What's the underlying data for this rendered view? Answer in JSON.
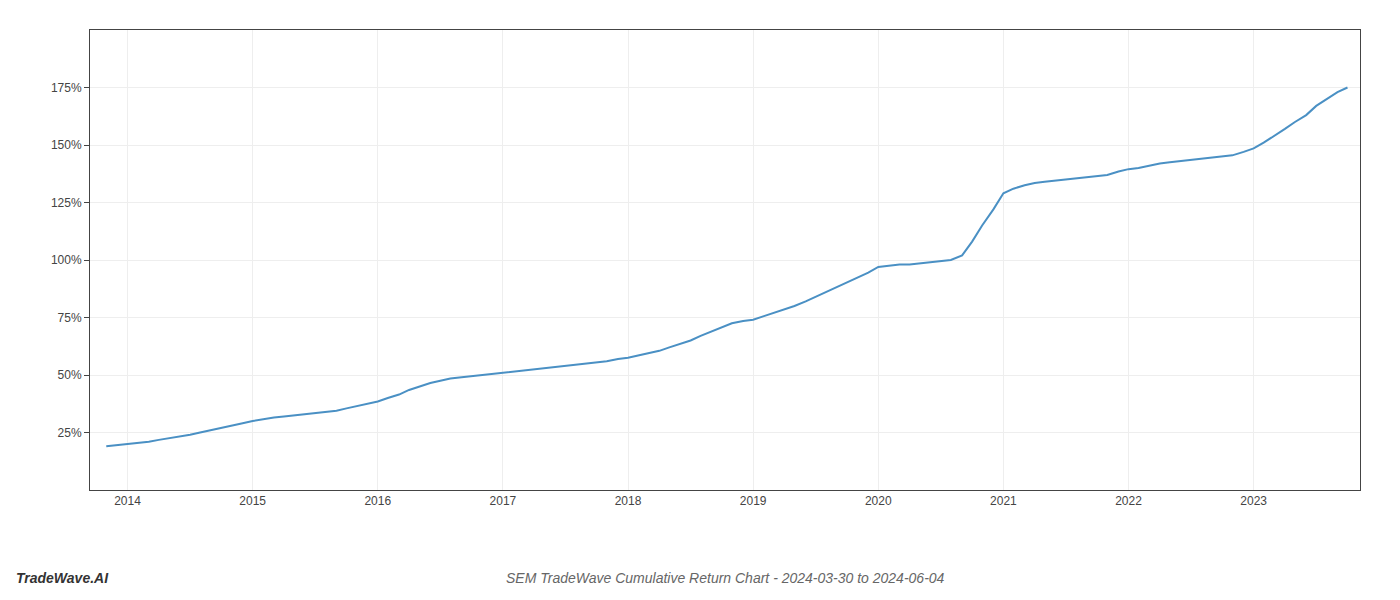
{
  "chart_data": {
    "type": "line",
    "title": "SEM TradeWave Cumulative Return Chart - 2024-03-30 to 2024-06-04",
    "annotations": [
      "TradeWave.AI"
    ],
    "color": "#4a90c4",
    "grid": true,
    "x": [
      2013.83,
      2013.92,
      2014.0,
      2014.08,
      2014.17,
      2014.25,
      2014.33,
      2014.42,
      2014.5,
      2014.58,
      2014.67,
      2014.75,
      2014.83,
      2014.92,
      2015.0,
      2015.08,
      2015.17,
      2015.25,
      2015.33,
      2015.42,
      2015.5,
      2015.58,
      2015.67,
      2015.75,
      2015.83,
      2015.92,
      2016.0,
      2016.08,
      2016.17,
      2016.25,
      2016.33,
      2016.42,
      2016.5,
      2016.58,
      2016.67,
      2016.75,
      2016.83,
      2016.92,
      2017.0,
      2017.08,
      2017.17,
      2017.25,
      2017.33,
      2017.42,
      2017.5,
      2017.58,
      2017.67,
      2017.75,
      2017.83,
      2017.92,
      2018.0,
      2018.08,
      2018.17,
      2018.25,
      2018.33,
      2018.42,
      2018.5,
      2018.58,
      2018.67,
      2018.75,
      2018.83,
      2018.92,
      2019.0,
      2019.08,
      2019.17,
      2019.25,
      2019.33,
      2019.42,
      2019.5,
      2019.58,
      2019.67,
      2019.75,
      2019.83,
      2019.92,
      2020.0,
      2020.08,
      2020.17,
      2020.25,
      2020.33,
      2020.42,
      2020.5,
      2020.58,
      2020.67,
      2020.75,
      2020.83,
      2020.92,
      2021.0,
      2021.08,
      2021.17,
      2021.25,
      2021.33,
      2021.42,
      2021.5,
      2021.58,
      2021.67,
      2021.75,
      2021.83,
      2021.92,
      2022.0,
      2022.08,
      2022.17,
      2022.25,
      2022.33,
      2022.42,
      2022.5,
      2022.58,
      2022.67,
      2022.75,
      2022.83,
      2022.92,
      2023.0,
      2023.08,
      2023.17,
      2023.25,
      2023.33,
      2023.42,
      2023.5,
      2023.58,
      2023.67,
      2023.75
    ],
    "values": [
      19.0,
      19.5,
      20.0,
      20.5,
      21.0,
      21.8,
      22.5,
      23.2,
      24.0,
      25.0,
      26.0,
      27.0,
      28.0,
      29.0,
      30.0,
      30.8,
      31.5,
      32.0,
      32.5,
      33.0,
      33.5,
      34.0,
      34.5,
      35.5,
      36.5,
      37.5,
      38.5,
      40.0,
      41.5,
      43.5,
      45.0,
      46.5,
      47.5,
      48.5,
      49.0,
      49.5,
      50.0,
      50.5,
      51.0,
      51.5,
      52.0,
      52.5,
      53.0,
      53.5,
      54.0,
      54.5,
      55.0,
      55.5,
      56.0,
      57.0,
      57.5,
      58.5,
      59.5,
      60.5,
      62.0,
      63.5,
      65.0,
      67.0,
      69.0,
      71.0,
      72.5,
      73.5,
      74.0,
      75.5,
      77.0,
      78.5,
      80.0,
      82.0,
      84.0,
      86.0,
      88.5,
      90.5,
      92.5,
      94.5,
      97.0,
      97.5,
      98.0,
      98.0,
      98.5,
      99.0,
      99.5,
      100.0,
      102.0,
      108.0,
      115.0,
      122.0,
      129.0,
      131.0,
      132.5,
      133.5,
      134.0,
      134.5,
      135.0,
      135.5,
      136.0,
      136.5,
      137.0,
      138.5,
      139.5,
      140.0,
      141.0,
      142.0,
      142.5,
      143.0,
      143.5,
      144.0,
      144.5,
      145.0,
      145.5,
      147.0,
      148.5,
      151.0,
      154.0,
      157.0,
      160.0,
      163.0,
      167.0,
      170.0,
      173.0,
      175.0
    ],
    "xlim": [
      2013.7,
      2023.85
    ],
    "xticks": [
      2014,
      2015,
      2016,
      2017,
      2018,
      2019,
      2020,
      2021,
      2022,
      2023
    ],
    "ylim": [
      0,
      200
    ],
    "yticks": [
      {
        "value": 25,
        "label": "25%"
      },
      {
        "value": 50,
        "label": "50%"
      },
      {
        "value": 75,
        "label": "75%"
      },
      {
        "value": 100,
        "label": "100%"
      },
      {
        "value": 125,
        "label": "125%"
      },
      {
        "value": 150,
        "label": "150%"
      },
      {
        "value": 175,
        "label": "175%"
      }
    ]
  }
}
